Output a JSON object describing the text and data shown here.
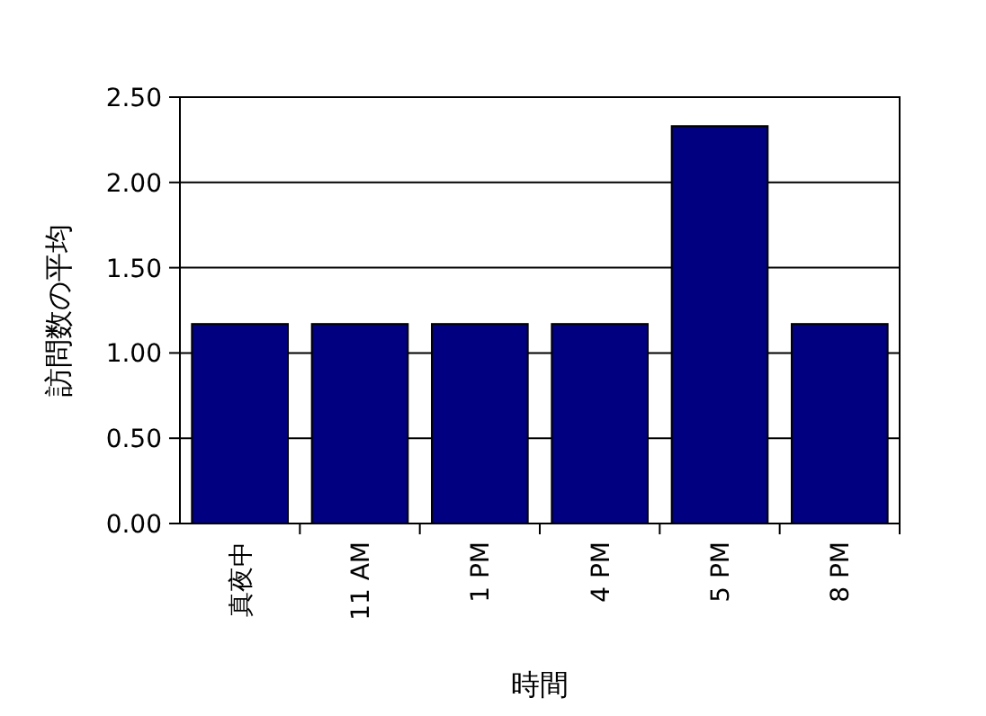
{
  "chart_data": {
    "type": "bar",
    "xlabel": "時間",
    "ylabel": "訪問数の平均",
    "categories": [
      "真夜中",
      "11 AM",
      "1 PM",
      "4 PM",
      "5 PM",
      "8 PM"
    ],
    "values": [
      1.17,
      1.17,
      1.17,
      1.17,
      2.33,
      1.17
    ],
    "color": "#000080",
    "ylim": [
      0,
      2.5
    ],
    "yticks": [
      {
        "value": 0,
        "label": "0.00"
      },
      {
        "value": 0.5,
        "label": "0.50"
      },
      {
        "value": 1,
        "label": "1.00"
      },
      {
        "value": 1.5,
        "label": "1.50"
      },
      {
        "value": 2,
        "label": "2.00"
      },
      {
        "value": 2.5,
        "label": "2.50"
      }
    ],
    "grid": "y"
  }
}
